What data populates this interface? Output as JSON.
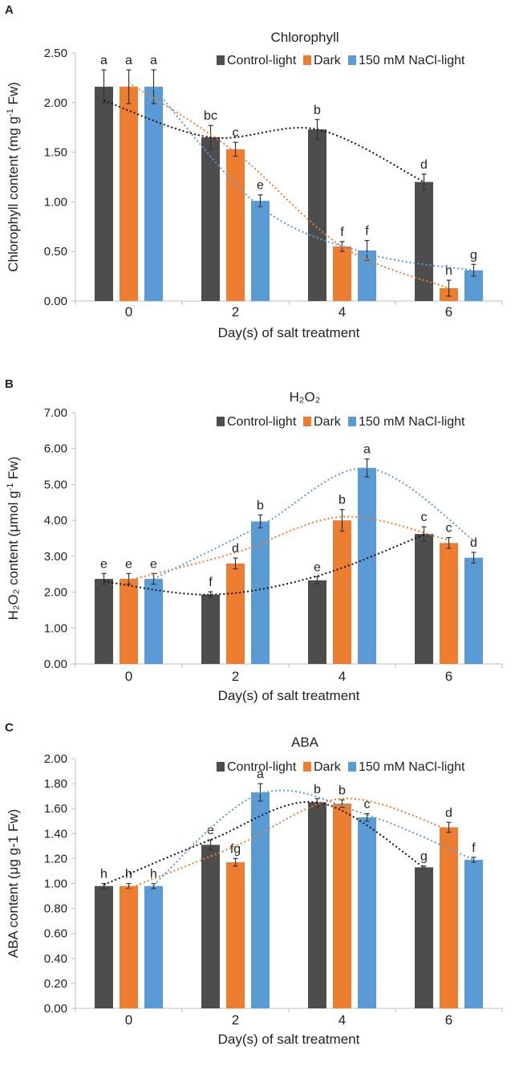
{
  "figure": {
    "colors": {
      "control": "#4d4d4d",
      "dark": "#ed7d31",
      "nacl": "#5b9bd5",
      "axis": "#bfbfbf",
      "errorbar": "#333333"
    }
  },
  "chart_data": [
    {
      "panel": "A",
      "type": "bar",
      "title": "Chlorophyll",
      "xlabel": "Day(s) of salt treatment",
      "ylabel_main": "Chlorophyll content (mg g",
      "ylabel_sup": "-1",
      "ylabel_end": " Fw)",
      "ylim": [
        0,
        2.5
      ],
      "yticks": [
        0,
        0.5,
        1.0,
        1.5,
        2.0,
        2.5
      ],
      "ytick_labels": [
        "0.00",
        "0.50",
        "1.00",
        "1.50",
        "2.00",
        "2.50"
      ],
      "categories": [
        "0",
        "2",
        "4",
        "6"
      ],
      "series": [
        {
          "name": "Control-light",
          "key": "control",
          "values": [
            2.16,
            1.65,
            1.73,
            1.2
          ],
          "errors": [
            0.17,
            0.12,
            0.1,
            0.08
          ],
          "letters": [
            "a",
            "bc",
            "b",
            "d"
          ]
        },
        {
          "name": "Dark",
          "key": "dark",
          "values": [
            2.16,
            1.53,
            0.55,
            0.13
          ],
          "errors": [
            0.17,
            0.07,
            0.05,
            0.08
          ],
          "letters": [
            "a",
            "c",
            "f",
            "h"
          ]
        },
        {
          "name": "150 mM NaCl-light",
          "key": "nacl",
          "values": [
            2.16,
            1.01,
            0.51,
            0.31
          ],
          "errors": [
            0.17,
            0.06,
            0.1,
            0.06
          ],
          "letters": [
            "a",
            "e",
            "f",
            "g"
          ]
        }
      ],
      "trendlines": {
        "control": [
          2.02,
          1.65,
          1.73,
          1.2
        ],
        "dark": [
          2.2,
          1.5,
          0.55,
          0.13
        ],
        "nacl": [
          2.15,
          0.95,
          0.48,
          0.31
        ]
      },
      "legend": "top-right"
    },
    {
      "panel": "B",
      "type": "bar",
      "title": "H₂O₂",
      "xlabel": "Day(s) of salt treatment",
      "ylabel_main": "H₂O₂ content (μmol g",
      "ylabel_sup": "-1",
      "ylabel_end": " Fw)",
      "ylim": [
        0,
        7
      ],
      "yticks": [
        0,
        1,
        2,
        3,
        4,
        5,
        6,
        7
      ],
      "ytick_labels": [
        "0.00",
        "1.00",
        "2.00",
        "3.00",
        "4.00",
        "5.00",
        "6.00",
        "7.00"
      ],
      "categories": [
        "0",
        "2",
        "4",
        "6"
      ],
      "series": [
        {
          "name": "Control-light",
          "key": "control",
          "values": [
            2.37,
            1.93,
            2.33,
            3.62
          ],
          "errors": [
            0.15,
            0.08,
            0.1,
            0.2
          ],
          "letters": [
            "e",
            "f",
            "e",
            "c"
          ]
        },
        {
          "name": "Dark",
          "key": "dark",
          "values": [
            2.37,
            2.8,
            4.0,
            3.37
          ],
          "errors": [
            0.15,
            0.15,
            0.3,
            0.15
          ],
          "letters": [
            "e",
            "d",
            "b",
            "c"
          ]
        },
        {
          "name": "150 mM NaCl-light",
          "key": "nacl",
          "values": [
            2.37,
            3.97,
            5.46,
            2.96
          ],
          "errors": [
            0.15,
            0.18,
            0.25,
            0.15
          ],
          "letters": [
            "e",
            "b",
            "a",
            "d"
          ]
        }
      ],
      "trendlines": {
        "control": [
          2.3,
          1.93,
          2.45,
          3.6
        ],
        "dark": [
          2.33,
          3.1,
          4.1,
          3.45
        ],
        "nacl": [
          2.37,
          3.85,
          5.45,
          3.45
        ]
      },
      "legend": "top-right"
    },
    {
      "panel": "C",
      "type": "bar",
      "title": "ABA",
      "xlabel": "Day(s) of salt treatment",
      "ylabel_main": "ABA content (μg g-1 Fw)",
      "ylabel_sup": "",
      "ylabel_end": "",
      "ylim": [
        0,
        2
      ],
      "yticks": [
        0,
        0.2,
        0.4,
        0.6,
        0.8,
        1.0,
        1.2,
        1.4,
        1.6,
        1.8,
        2.0
      ],
      "ytick_labels": [
        "0.00",
        "0.20",
        "0.40",
        "0.60",
        "0.80",
        "1.00",
        "1.20",
        "1.40",
        "1.60",
        "1.80",
        "2.00"
      ],
      "categories": [
        "0",
        "2",
        "4",
        "6"
      ],
      "series": [
        {
          "name": "Control-light",
          "key": "control",
          "values": [
            0.98,
            1.31,
            1.65,
            1.13
          ],
          "errors": [
            0.02,
            0.04,
            0.03,
            0.01
          ],
          "letters": [
            "h",
            "e",
            "b",
            "g"
          ]
        },
        {
          "name": "Dark",
          "key": "dark",
          "values": [
            0.98,
            1.17,
            1.64,
            1.45
          ],
          "errors": [
            0.02,
            0.03,
            0.03,
            0.04
          ],
          "letters": [
            "h",
            "fg",
            "b",
            "d"
          ]
        },
        {
          "name": "150 mM NaCl-light",
          "key": "nacl",
          "values": [
            0.98,
            1.73,
            1.53,
            1.19
          ],
          "errors": [
            0.02,
            0.07,
            0.03,
            0.02
          ],
          "letters": [
            "h",
            "a",
            "c",
            "f"
          ]
        }
      ],
      "trendlines": {
        "control": [
          0.99,
          1.35,
          1.65,
          1.13
        ],
        "dark": [
          0.96,
          1.3,
          1.68,
          1.43
        ],
        "nacl": [
          0.99,
          1.72,
          1.55,
          1.19
        ]
      },
      "legend": "top-right"
    }
  ]
}
